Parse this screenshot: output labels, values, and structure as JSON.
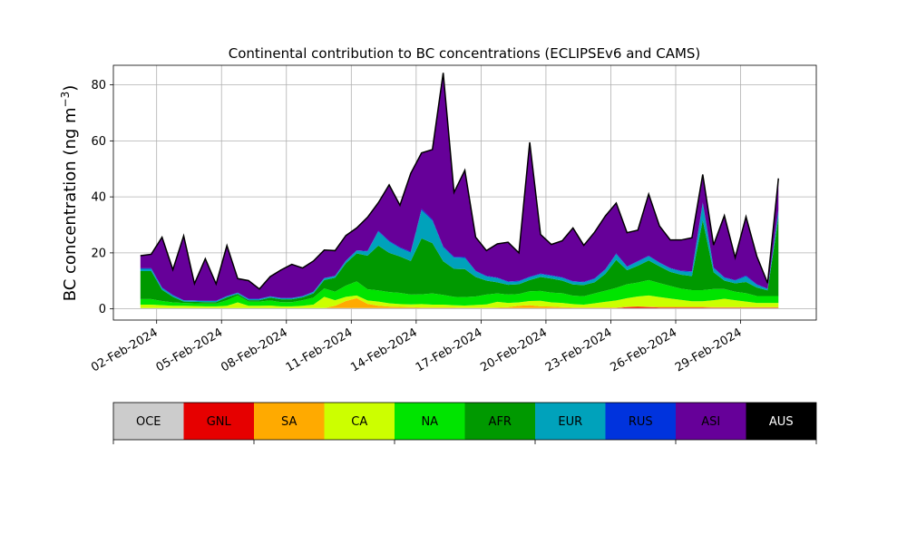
{
  "chart_data": {
    "type": "area",
    "title": "Continental contribution to BC concentrations (ECLIPSEv6 and CAMS)",
    "ylabel_text": "BC concentration (ng m",
    "ylabel_sup": "−3",
    "ylabel_close": ")",
    "xlabel": "",
    "ylim": [
      -4,
      87
    ],
    "x_range_days": [
      "2024-01-31 00:00",
      "2024-03-03 12:00"
    ],
    "yticks": [
      0,
      20,
      40,
      60,
      80
    ],
    "ytick_labels": [
      "0",
      "20",
      "40",
      "60",
      "80"
    ],
    "xticks": [
      "2024-02-02",
      "2024-02-05",
      "2024-02-08",
      "2024-02-11",
      "2024-02-14",
      "2024-02-17",
      "2024-02-20",
      "2024-02-23",
      "2024-02-26",
      "2024-02-29"
    ],
    "xtick_labels": [
      "02-Feb-2024",
      "05-Feb-2024",
      "08-Feb-2024",
      "11-Feb-2024",
      "14-Feb-2024",
      "17-Feb-2024",
      "20-Feb-2024",
      "23-Feb-2024",
      "26-Feb-2024",
      "29-Feb-2024"
    ],
    "grid": true,
    "stacking": "stacked",
    "x_dates": [
      "2024-02-01 06:00",
      "2024-02-01 18:00",
      "2024-02-02 06:00",
      "2024-02-02 18:00",
      "2024-02-03 06:00",
      "2024-02-03 18:00",
      "2024-02-04 06:00",
      "2024-02-04 18:00",
      "2024-02-05 06:00",
      "2024-02-05 18:00",
      "2024-02-06 06:00",
      "2024-02-06 18:00",
      "2024-02-07 06:00",
      "2024-02-07 18:00",
      "2024-02-08 06:00",
      "2024-02-08 18:00",
      "2024-02-09 06:00",
      "2024-02-09 18:00",
      "2024-02-10 06:00",
      "2024-02-10 18:00",
      "2024-02-11 06:00",
      "2024-02-11 18:00",
      "2024-02-12 06:00",
      "2024-02-12 18:00",
      "2024-02-13 06:00",
      "2024-02-13 18:00",
      "2024-02-14 06:00",
      "2024-02-14 18:00",
      "2024-02-15 06:00",
      "2024-02-15 18:00",
      "2024-02-16 06:00",
      "2024-02-16 18:00",
      "2024-02-17 06:00",
      "2024-02-17 18:00",
      "2024-02-18 06:00",
      "2024-02-18 18:00",
      "2024-02-19 06:00",
      "2024-02-19 18:00",
      "2024-02-20 06:00",
      "2024-02-20 18:00",
      "2024-02-21 06:00",
      "2024-02-21 18:00",
      "2024-02-22 06:00",
      "2024-02-22 18:00",
      "2024-02-23 06:00",
      "2024-02-23 18:00",
      "2024-02-24 06:00",
      "2024-02-24 18:00",
      "2024-02-25 06:00",
      "2024-02-25 18:00",
      "2024-02-26 06:00",
      "2024-02-26 18:00",
      "2024-02-27 06:00",
      "2024-02-27 18:00",
      "2024-02-28 06:00",
      "2024-02-28 18:00",
      "2024-02-29 06:00",
      "2024-02-29 18:00",
      "2024-03-01 06:00",
      "2024-03-01 18:00"
    ],
    "series": [
      {
        "name": "OCE",
        "color": "#cccccc",
        "values": [
          0.3,
          0.3,
          0.3,
          0.3,
          0.3,
          0.3,
          0.3,
          0.3,
          0.3,
          0.3,
          0.3,
          0.3,
          0.3,
          0.3,
          0.3,
          0.3,
          0.3,
          0.3,
          0.3,
          0.3,
          0.3,
          0.3,
          0.3,
          0.3,
          0.3,
          0.3,
          0.3,
          0.3,
          0.3,
          0.3,
          0.3,
          0.3,
          0.3,
          0.3,
          0.3,
          0.3,
          0.3,
          0.3,
          0.3,
          0.3,
          0.3,
          0.3,
          0.3,
          0.3,
          0.3,
          0.3,
          0.3,
          0.3,
          0.3,
          0.3,
          0.3,
          0.3,
          0.3,
          0.3,
          0.3,
          0.3,
          0.3,
          0.3,
          0.3,
          0.3
        ]
      },
      {
        "name": "GNL",
        "color": "#e60000",
        "values": [
          0,
          0,
          0,
          0,
          0,
          0,
          0,
          0,
          0,
          0,
          0,
          0,
          0,
          0,
          0,
          0,
          0,
          0,
          0,
          0,
          0,
          0,
          0,
          0,
          0,
          0,
          0,
          0,
          0,
          0,
          0,
          0,
          0,
          0,
          0,
          0,
          0,
          0,
          0,
          0,
          0,
          0,
          0,
          0,
          0,
          0.3,
          0.4,
          0.3,
          0.2,
          0.2,
          0.2,
          0.2,
          0.2,
          0.1,
          0.1,
          0.1,
          0.1,
          0.1,
          0.1,
          0.1
        ]
      },
      {
        "name": "SA",
        "color": "#ffaa00",
        "values": [
          0,
          0,
          0,
          0,
          0,
          0,
          0,
          0,
          0,
          0,
          0,
          0,
          0,
          0,
          0,
          0,
          0,
          0,
          0.8,
          2.5,
          3.5,
          1.5,
          0.8,
          0.5,
          0.4,
          0.3,
          0.2,
          0.2,
          0.2,
          0.2,
          0.1,
          0.1,
          0.1,
          0.2,
          0.3,
          0.8,
          1.0,
          0.6,
          0.5,
          0.3,
          0.2,
          0.2,
          0.2,
          0.2,
          0.2,
          0.2,
          0.2,
          0.2,
          0.2,
          0.2,
          0.2,
          0.2,
          0.2,
          0.2,
          0.2,
          0.2,
          0.2,
          0.2,
          0.2,
          0.2
        ]
      },
      {
        "name": "CA",
        "color": "#ccff00",
        "values": [
          1.2,
          1.2,
          1.0,
          0.8,
          0.8,
          0.7,
          0.6,
          0.6,
          0.8,
          2.0,
          0.8,
          0.8,
          0.9,
          0.6,
          0.6,
          0.8,
          1.2,
          4.0,
          2.0,
          1.5,
          1.0,
          1.2,
          1.5,
          1.2,
          1.0,
          1.0,
          1.2,
          1.0,
          1.0,
          0.8,
          0.8,
          1.0,
          1.2,
          2.0,
          1.5,
          1.2,
          1.5,
          2.0,
          1.5,
          1.5,
          1.2,
          1.0,
          1.5,
          2.0,
          2.5,
          3.0,
          3.5,
          4.0,
          3.5,
          3.0,
          2.5,
          2.0,
          2.0,
          2.5,
          3.0,
          2.5,
          2.0,
          1.5,
          1.5,
          1.5
        ]
      },
      {
        "name": "NA",
        "color": "#00e400",
        "values": [
          2.0,
          2.0,
          1.5,
          1.2,
          1.0,
          1.0,
          1.0,
          1.0,
          2.0,
          2.5,
          1.5,
          1.5,
          1.8,
          1.5,
          1.5,
          2.0,
          2.5,
          3.0,
          3.0,
          4.0,
          5.0,
          4.0,
          4.0,
          4.0,
          4.0,
          3.5,
          3.5,
          4.0,
          3.5,
          3.0,
          3.0,
          3.0,
          3.5,
          3.0,
          3.0,
          3.0,
          3.5,
          3.5,
          3.5,
          3.5,
          3.0,
          3.0,
          3.5,
          4.0,
          4.5,
          5.0,
          5.0,
          5.5,
          5.0,
          4.5,
          4.0,
          4.0,
          4.0,
          4.0,
          3.5,
          3.0,
          3.0,
          2.5,
          2.5,
          2.5
        ]
      },
      {
        "name": "AFR",
        "color": "#009900",
        "values": [
          10.0,
          10.0,
          4.0,
          2.0,
          0.5,
          0.5,
          0.5,
          0.5,
          1.0,
          0.5,
          0.5,
          0.5,
          1.0,
          1.0,
          1.0,
          1.0,
          1.5,
          3.0,
          5.0,
          8.0,
          10.0,
          12.0,
          16.0,
          14.0,
          13.0,
          12.0,
          20.0,
          18.0,
          12.0,
          10.0,
          10.0,
          7.0,
          5.0,
          4.0,
          3.5,
          3.5,
          4.0,
          5.0,
          5.0,
          4.5,
          4.0,
          4.0,
          4.0,
          6.0,
          10.0,
          5.0,
          6.0,
          7.0,
          6.0,
          5.0,
          5.0,
          5.0,
          25.0,
          6.0,
          3.0,
          3.0,
          4.0,
          3.0,
          2.0,
          28.0
        ]
      },
      {
        "name": "EUR",
        "color": "#00a2bb",
        "values": [
          0.8,
          0.8,
          0.6,
          0.5,
          0.4,
          0.4,
          0.4,
          0.4,
          0.4,
          0.4,
          0.4,
          0.4,
          0.4,
          0.4,
          0.4,
          0.4,
          0.5,
          0.6,
          0.6,
          0.8,
          1.0,
          1.5,
          5.0,
          4.0,
          3.0,
          3.0,
          10.0,
          8.0,
          5.0,
          4.0,
          4.0,
          2.0,
          1.5,
          1.5,
          1.0,
          1.0,
          1.0,
          1.0,
          1.0,
          1.0,
          1.0,
          1.0,
          1.2,
          1.5,
          2.0,
          1.2,
          1.5,
          1.5,
          1.2,
          1.2,
          1.2,
          1.5,
          6.0,
          1.5,
          1.0,
          1.0,
          2.0,
          1.0,
          0.5,
          2.5
        ]
      },
      {
        "name": "RUS",
        "color": "#0033dd",
        "values": [
          0.2,
          0.2,
          0.2,
          0.2,
          0.1,
          0.1,
          0.1,
          0.1,
          0.1,
          0.1,
          0.1,
          0.1,
          0.1,
          0.1,
          0.1,
          0.1,
          0.1,
          0.1,
          0.1,
          0.1,
          0.1,
          0.2,
          0.3,
          0.3,
          0.3,
          0.3,
          0.5,
          0.4,
          0.3,
          0.3,
          0.3,
          0.2,
          0.2,
          0.2,
          0.2,
          0.2,
          0.2,
          0.2,
          0.2,
          0.2,
          0.2,
          0.2,
          0.2,
          0.2,
          0.3,
          0.2,
          0.2,
          0.2,
          0.2,
          0.2,
          0.2,
          0.2,
          0.3,
          0.2,
          0.2,
          0.2,
          0.3,
          0.2,
          0.1,
          0.5
        ]
      },
      {
        "name": "ASI",
        "color": "#660099",
        "values": [
          4.5,
          5.0,
          18.0,
          9.0,
          23.0,
          6.0,
          15.0,
          6.0,
          18.0,
          5.0,
          6.5,
          3.5,
          7.0,
          10.0,
          12.0,
          10.0,
          11.0,
          10.0,
          9.0,
          9.0,
          8.0,
          12.0,
          10.0,
          20.0,
          15.0,
          28.0,
          20.0,
          25.0,
          62.0,
          23.0,
          31.0,
          12.0,
          9.0,
          12.0,
          14.0,
          10.0,
          48.0,
          14.0,
          11.0,
          13.0,
          19.0,
          13.0,
          16.5,
          19.0,
          18.0,
          12.0,
          11.0,
          22.0,
          13.0,
          10.0,
          11.0,
          12.0,
          10.0,
          8.0,
          22.0,
          8.0,
          21.0,
          10.0,
          2.0,
          11.0
        ]
      },
      {
        "name": "AUS",
        "color": "#000000",
        "values": [
          0,
          0,
          0,
          0,
          0,
          0,
          0,
          0,
          0,
          0,
          0,
          0,
          0,
          0,
          0,
          0,
          0,
          0,
          0,
          0,
          0,
          0,
          0,
          0,
          0,
          0,
          0,
          0,
          0,
          0,
          0,
          0,
          0,
          0,
          0,
          0,
          0,
          0,
          0,
          0,
          0,
          0,
          0,
          0,
          0,
          0,
          0,
          0,
          0,
          0,
          0,
          0,
          0,
          0,
          0,
          0,
          0,
          0,
          0,
          0
        ]
      }
    ],
    "legend": {
      "placement": "bottom",
      "items": [
        {
          "label": "OCE",
          "color": "#cccccc",
          "text_color": "#000000"
        },
        {
          "label": "GNL",
          "color": "#e60000",
          "text_color": "#000000"
        },
        {
          "label": "SA",
          "color": "#ffaa00",
          "text_color": "#000000"
        },
        {
          "label": "CA",
          "color": "#ccff00",
          "text_color": "#000000"
        },
        {
          "label": "NA",
          "color": "#00e400",
          "text_color": "#000000"
        },
        {
          "label": "AFR",
          "color": "#009900",
          "text_color": "#000000"
        },
        {
          "label": "EUR",
          "color": "#00a2bb",
          "text_color": "#000000"
        },
        {
          "label": "RUS",
          "color": "#0033dd",
          "text_color": "#000000"
        },
        {
          "label": "ASI",
          "color": "#660099",
          "text_color": "#000000"
        },
        {
          "label": "AUS",
          "color": "#000000",
          "text_color": "#ffffff"
        }
      ]
    }
  }
}
